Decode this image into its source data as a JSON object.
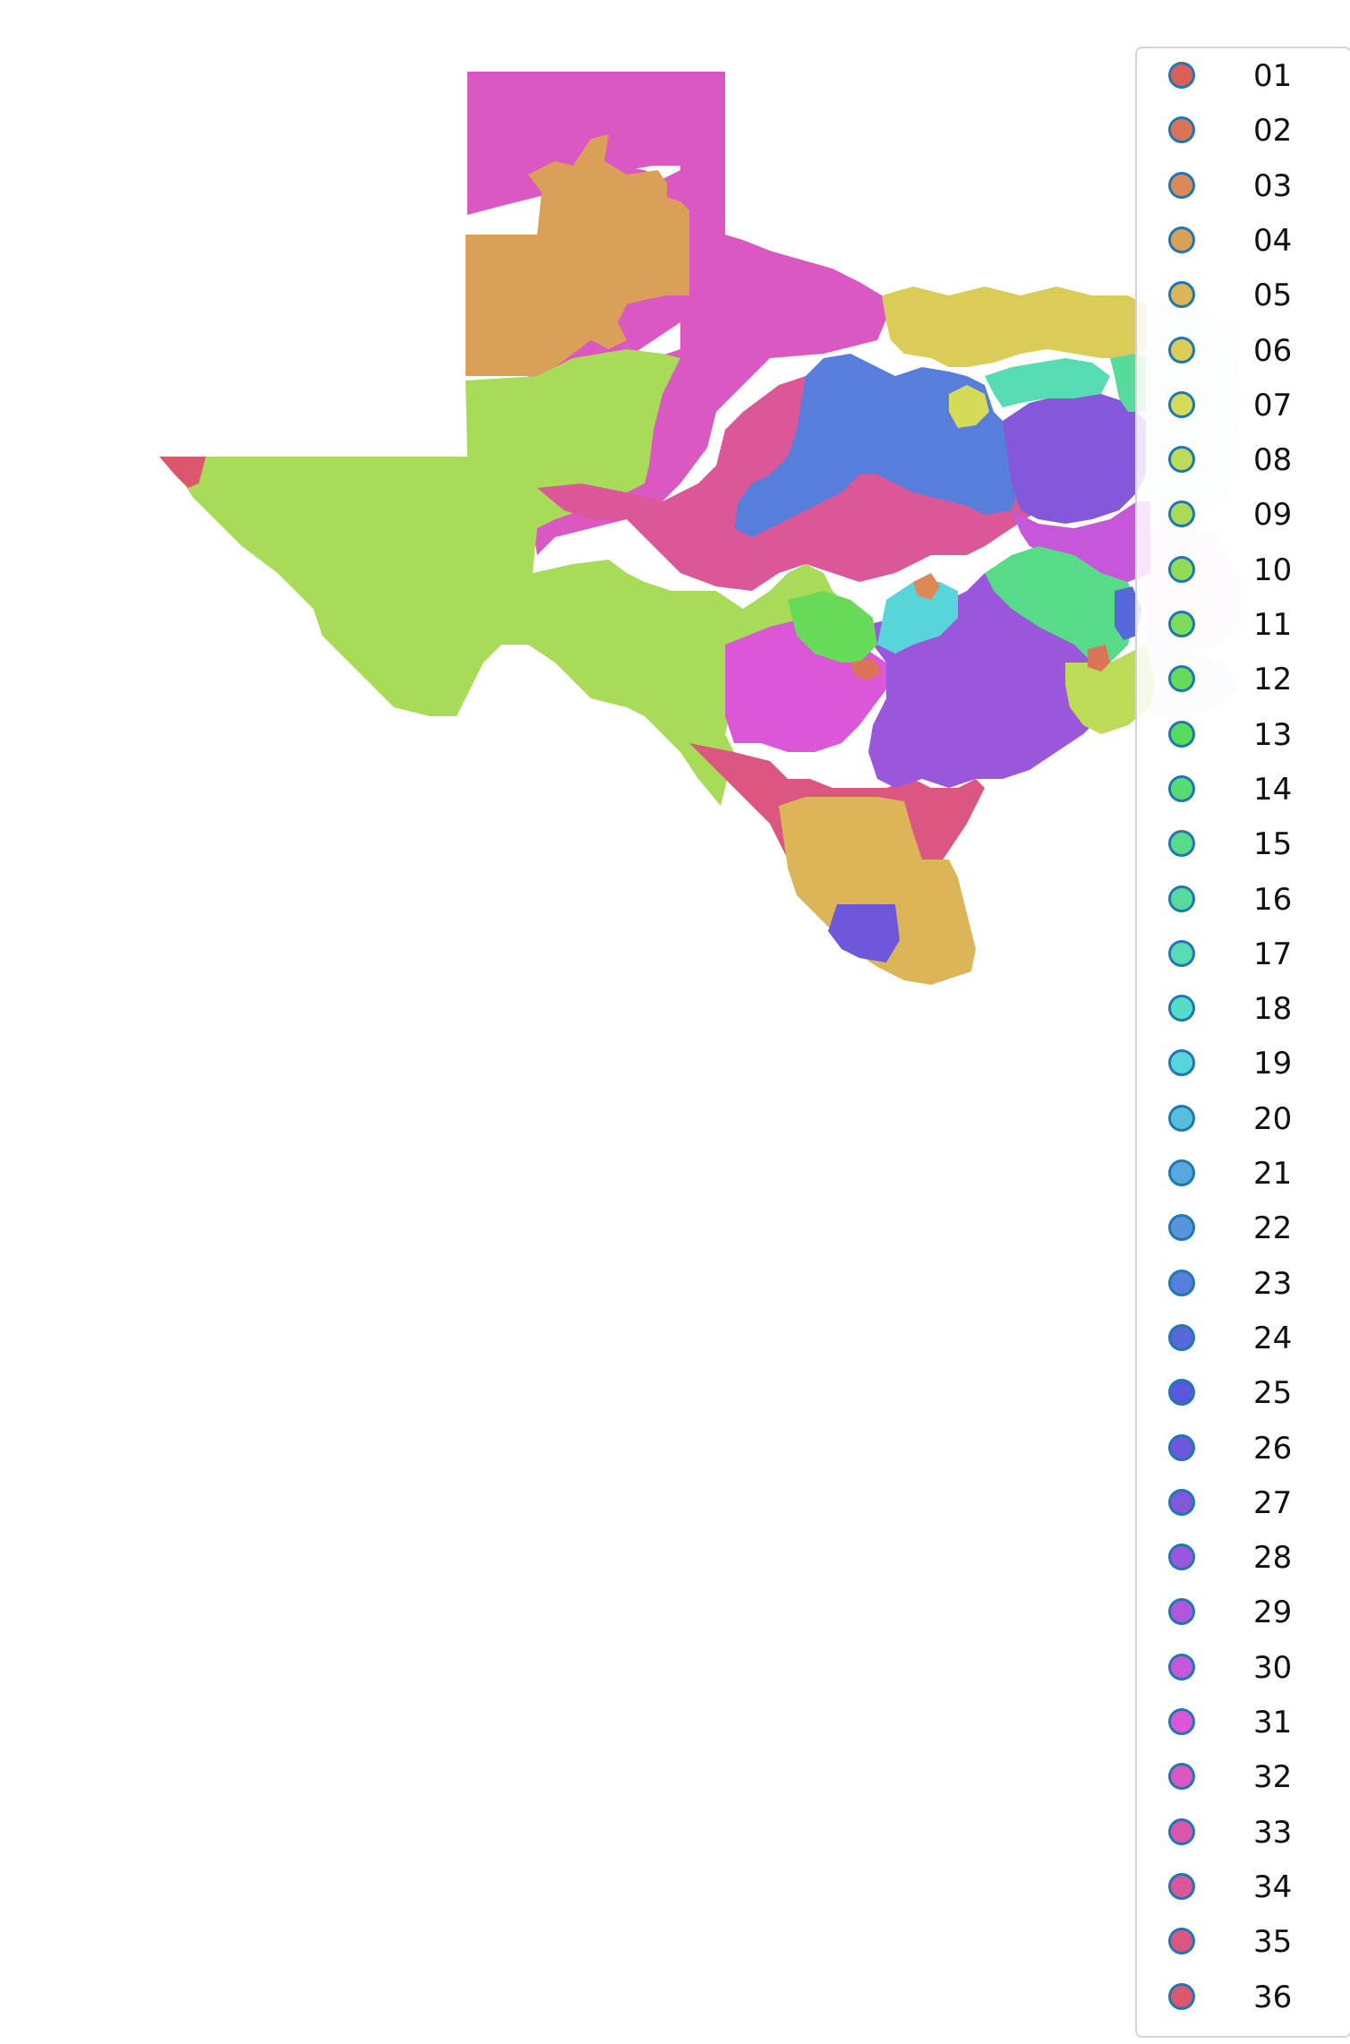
{
  "map": {
    "marker_edge_color": "#1f77b4",
    "districts": [
      {
        "code": "01",
        "color": "#db5f57"
      },
      {
        "code": "02",
        "color": "#db7457"
      },
      {
        "code": "03",
        "color": "#db8a57"
      },
      {
        "code": "04",
        "color": "#dba057"
      },
      {
        "code": "05",
        "color": "#dbb557"
      },
      {
        "code": "06",
        "color": "#dbcb57"
      },
      {
        "code": "07",
        "color": "#d3db57"
      },
      {
        "code": "08",
        "color": "#bddb57"
      },
      {
        "code": "09",
        "color": "#a8db57"
      },
      {
        "code": "10",
        "color": "#92db57"
      },
      {
        "code": "11",
        "color": "#7cdb57"
      },
      {
        "code": "12",
        "color": "#67db57"
      },
      {
        "code": "13",
        "color": "#57db5c"
      },
      {
        "code": "14",
        "color": "#57db72"
      },
      {
        "code": "15",
        "color": "#57db88"
      },
      {
        "code": "16",
        "color": "#57db9d"
      },
      {
        "code": "17",
        "color": "#57dbb3"
      },
      {
        "code": "18",
        "color": "#57dbc9"
      },
      {
        "code": "19",
        "color": "#57d5db"
      },
      {
        "code": "20",
        "color": "#57bfdb"
      },
      {
        "code": "21",
        "color": "#57a9db"
      },
      {
        "code": "22",
        "color": "#5794db"
      },
      {
        "code": "23",
        "color": "#577edb"
      },
      {
        "code": "24",
        "color": "#5768db"
      },
      {
        "code": "25",
        "color": "#5957db"
      },
      {
        "code": "26",
        "color": "#6f57db"
      },
      {
        "code": "27",
        "color": "#8557db"
      },
      {
        "code": "28",
        "color": "#9b57db"
      },
      {
        "code": "29",
        "color": "#b057db"
      },
      {
        "code": "30",
        "color": "#c657db"
      },
      {
        "code": "31",
        "color": "#db57d8"
      },
      {
        "code": "32",
        "color": "#db57c2"
      },
      {
        "code": "33",
        "color": "#db57ac"
      },
      {
        "code": "34",
        "color": "#db5797"
      },
      {
        "code": "35",
        "color": "#db5781"
      },
      {
        "code": "36",
        "color": "#db576b"
      }
    ]
  }
}
